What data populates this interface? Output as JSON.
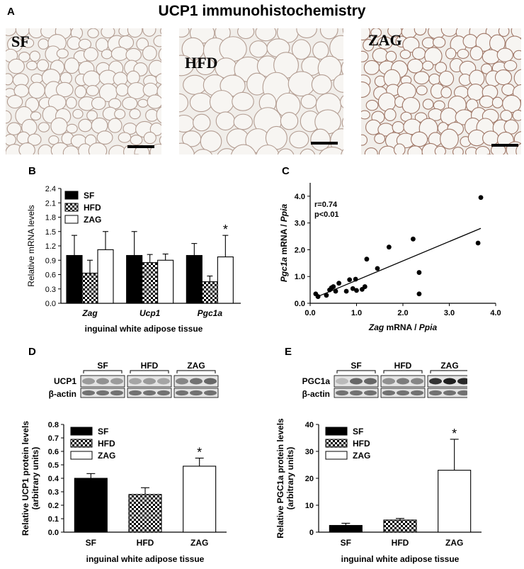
{
  "figure_title": "UCP1 immunohistochemistry",
  "panels": {
    "a": "A",
    "b": "B",
    "c": "C",
    "d": "D",
    "e": "E"
  },
  "micrographs": [
    {
      "label": "SF"
    },
    {
      "label": "HFD"
    },
    {
      "label": "ZAG"
    }
  ],
  "blot_d": {
    "groups": [
      "SF",
      "HFD",
      "ZAG"
    ],
    "rows": [
      "UCP1",
      "β-actin"
    ]
  },
  "blot_e": {
    "groups": [
      "SF",
      "HFD",
      "ZAG"
    ],
    "rows": [
      "PGC1a",
      "β-actin"
    ]
  },
  "colors": {
    "sf": "#000000",
    "zag": "#ffffff",
    "hfd_pattern": "checkerboard"
  },
  "chart_data": [
    {
      "id": "B",
      "type": "bar",
      "categories": [
        "Zag",
        "Ucp1",
        "Pgc1a"
      ],
      "series": [
        {
          "name": "SF",
          "values": [
            1.0,
            1.0,
            1.0
          ],
          "errors": [
            0.42,
            0.5,
            0.25
          ]
        },
        {
          "name": "HFD",
          "values": [
            0.63,
            0.85,
            0.45
          ],
          "errors": [
            0.27,
            0.17,
            0.12
          ]
        },
        {
          "name": "ZAG",
          "values": [
            1.12,
            0.9,
            0.97
          ],
          "errors": [
            0.38,
            0.13,
            0.45
          ]
        }
      ],
      "ylabel": "Relative mRNA levels",
      "xlabel": "inguinal white adipose tissue",
      "ylim": [
        0,
        2.4
      ],
      "yticks": [
        "0.0",
        "0.3",
        "0.6",
        "0.9",
        "1.2",
        "1.5",
        "1.8",
        "2.1",
        "2.4"
      ],
      "annotations": [
        {
          "category": "Pgc1a",
          "series": "ZAG",
          "text": "*"
        }
      ],
      "legend": "top-left"
    },
    {
      "id": "C",
      "type": "scatter",
      "xlabel_italic": "Zag",
      "xlabel_rest": " mRNA / ",
      "xlabel_italic2": "Ppia",
      "ylabel_italic": "Pgc1a",
      "ylabel_rest": " mRNA / ",
      "ylabel_italic2": "Ppia",
      "xlim": [
        0,
        4.0
      ],
      "ylim": [
        0,
        4.5
      ],
      "xticks": [
        "0.0",
        "1.0",
        "2.0",
        "3.0",
        "4.0"
      ],
      "yticks": [
        "0.0",
        "1.0",
        "2.0",
        "3.0",
        "4.0"
      ],
      "stats": [
        "r=0.74",
        "p<0.01"
      ],
      "points": [
        [
          0.12,
          0.35
        ],
        [
          0.17,
          0.25
        ],
        [
          0.35,
          0.3
        ],
        [
          0.42,
          0.5
        ],
        [
          0.46,
          0.58
        ],
        [
          0.5,
          0.62
        ],
        [
          0.55,
          0.45
        ],
        [
          0.62,
          0.75
        ],
        [
          0.78,
          0.45
        ],
        [
          0.85,
          0.88
        ],
        [
          0.92,
          0.55
        ],
        [
          0.98,
          0.9
        ],
        [
          1.0,
          0.48
        ],
        [
          1.12,
          0.52
        ],
        [
          1.18,
          0.62
        ],
        [
          1.22,
          1.65
        ],
        [
          1.45,
          1.3
        ],
        [
          1.7,
          2.1
        ],
        [
          2.22,
          2.4
        ],
        [
          2.35,
          1.15
        ],
        [
          2.35,
          0.35
        ],
        [
          3.62,
          2.25
        ],
        [
          3.68,
          3.95
        ]
      ],
      "fit": {
        "x": [
          0.12,
          3.68
        ],
        "y": [
          0.22,
          2.8
        ]
      }
    },
    {
      "id": "D",
      "type": "bar",
      "categories": [
        "SF",
        "HFD",
        "ZAG"
      ],
      "values": [
        0.4,
        0.28,
        0.49
      ],
      "errors": [
        0.035,
        0.05,
        0.06
      ],
      "ylabel_lines": [
        "Relative UCP1 protein levels",
        "(arbitrary units)"
      ],
      "xlabel": "inguinal white adipose tissue",
      "ylim": [
        0,
        0.8
      ],
      "yticks": [
        "0.0",
        "0.1",
        "0.2",
        "0.3",
        "0.4",
        "0.5",
        "0.6",
        "0.7",
        "0.8"
      ],
      "legend_entries": [
        "SF",
        "HFD",
        "ZAG"
      ],
      "annotations": [
        {
          "category": "ZAG",
          "text": "*"
        }
      ],
      "legend": "top-left"
    },
    {
      "id": "E",
      "type": "bar",
      "categories": [
        "SF",
        "HFD",
        "ZAG"
      ],
      "values": [
        2.5,
        4.5,
        23
      ],
      "errors": [
        0.8,
        0.6,
        11.5
      ],
      "ylabel_lines": [
        "Relative PGC1a protein levels",
        "(arbitrary units)"
      ],
      "xlabel": "inguinal white adipose tissue",
      "ylim": [
        0,
        40
      ],
      "yticks": [
        "0",
        "10",
        "20",
        "30",
        "40"
      ],
      "legend_entries": [
        "SF",
        "HFD",
        "ZAG"
      ],
      "annotations": [
        {
          "category": "ZAG",
          "text": "*"
        }
      ],
      "legend": "top-left"
    }
  ]
}
